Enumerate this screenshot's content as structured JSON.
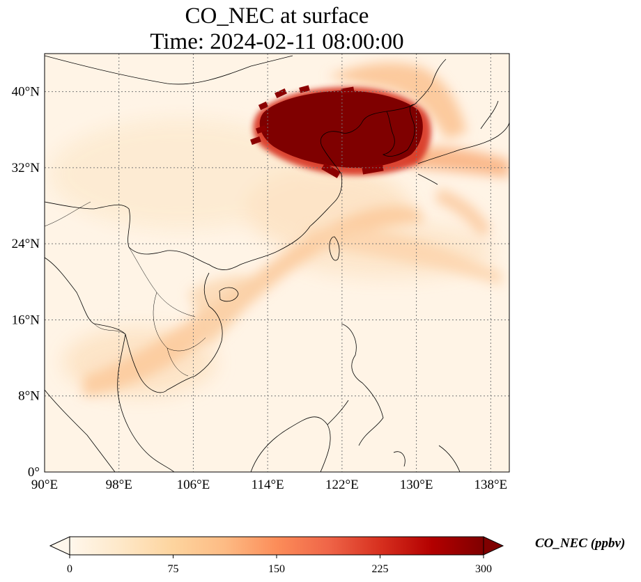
{
  "title": {
    "line1": "CO_NEC at surface",
    "line2": "Time: 2024-02-11 08:00:00"
  },
  "map": {
    "projection": "PlateCarree",
    "lon_range": [
      90,
      140
    ],
    "lat_range": [
      0,
      44
    ],
    "lon_ticks": [
      "90°E",
      "98°E",
      "106°E",
      "114°E",
      "122°E",
      "130°E",
      "138°E"
    ],
    "lat_ticks": [
      "0°",
      "8°N",
      "16°N",
      "24°N",
      "32°N",
      "40°N"
    ],
    "gridlines": "dotted grey",
    "coastlines": true,
    "borders": true
  },
  "field": {
    "variable": "CO_NEC",
    "plume_core": "North China Plain, Korea and Yellow Sea (approx. 113–130°E, 33–40°N) at >= 300 ppbv",
    "secondary_plumes": "Southern Japan outflow; band from South China Sea toward Indochina and Bay of Bengal"
  },
  "colorbar": {
    "label": "CO_NEC (ppbv)",
    "ticks": [
      "0",
      "75",
      "150",
      "225",
      "300"
    ],
    "range": [
      0,
      300
    ],
    "extend": "both",
    "colormap": "OrRd",
    "colors": [
      "#fff7ec",
      "#fee8c8",
      "#fdd49e",
      "#fdbb84",
      "#fc8d59",
      "#ef6548",
      "#d7301f",
      "#b30000",
      "#7f0000"
    ]
  }
}
